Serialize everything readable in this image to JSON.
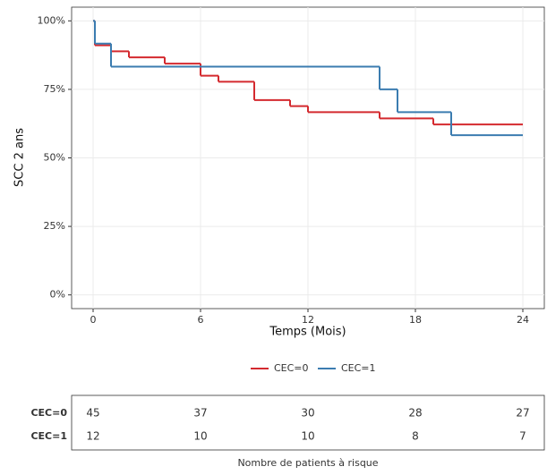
{
  "chart_data": {
    "type": "step",
    "x_label": "Temps (Mois)",
    "y_label": "SCC 2 ans",
    "xlim": [
      -1.2,
      25.2
    ],
    "xticks": [
      0,
      6,
      12,
      18,
      24
    ],
    "ylim": [
      -5,
      105
    ],
    "yticks": [
      {
        "value": 0,
        "label": "0%"
      },
      {
        "value": 25,
        "label": "25%"
      },
      {
        "value": 50,
        "label": "50%"
      },
      {
        "value": 75,
        "label": "75%"
      },
      {
        "value": 100,
        "label": "100%"
      }
    ],
    "grid": true,
    "legend": "bottom",
    "series": [
      {
        "name": "CEC=0",
        "color": "#d42a2f",
        "x": [
          0,
          0.1,
          1,
          2,
          4,
          6,
          7,
          9,
          11,
          12,
          16,
          19,
          24
        ],
        "values": [
          100,
          91.1,
          88.9,
          86.7,
          84.4,
          80,
          77.8,
          71.1,
          68.9,
          66.7,
          64.4,
          62.2,
          62.2
        ]
      },
      {
        "name": "CEC=1",
        "color": "#3b7cb0",
        "x": [
          0,
          0.1,
          1,
          16,
          17,
          20,
          24
        ],
        "values": [
          100,
          91.7,
          83.3,
          75,
          66.7,
          58.3,
          58.3
        ]
      }
    ],
    "risk_table": {
      "title": "Nombre de patients à risque",
      "rows": [
        {
          "name": "CEC=0",
          "values": [
            45,
            37,
            30,
            28,
            27
          ]
        },
        {
          "name": "CEC=1",
          "values": [
            12,
            10,
            10,
            8,
            7
          ]
        }
      ]
    }
  }
}
